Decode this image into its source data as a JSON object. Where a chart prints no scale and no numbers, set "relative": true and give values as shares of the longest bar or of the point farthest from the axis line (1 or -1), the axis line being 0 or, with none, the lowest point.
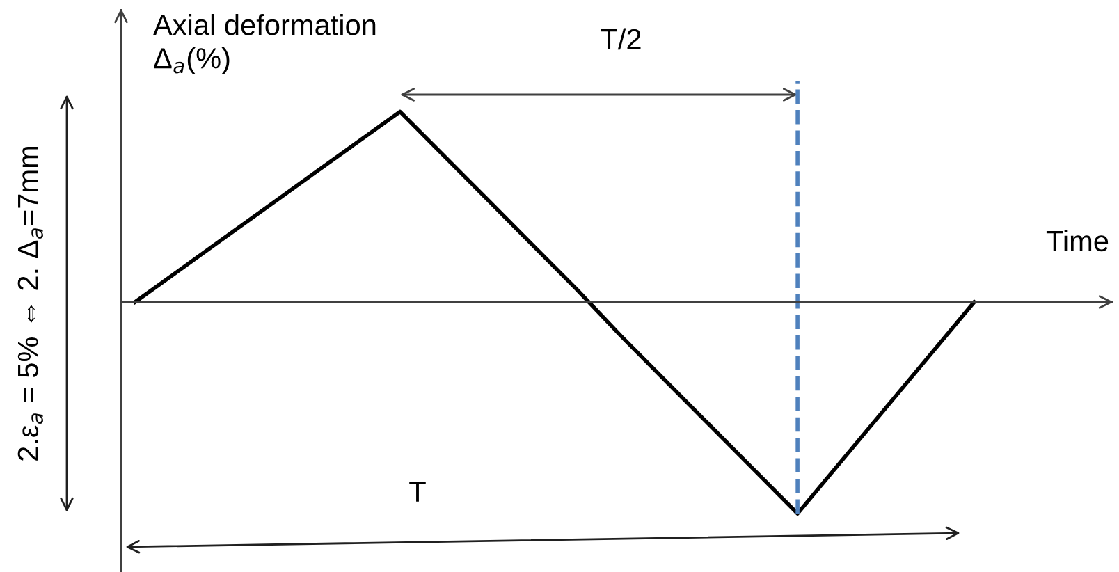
{
  "chart_data": {
    "type": "line",
    "relative": true,
    "ylabel": "Axial deformation\nΔ$_{a}$(%)",
    "xlabel": "Time",
    "categories": [
      null,
      null,
      null,
      null,
      null,
      null,
      null,
      null,
      null,
      null,
      null,
      null,
      null,
      null,
      null,
      null,
      null,
      null,
      null,
      null
    ],
    "series": [
      {
        "color": "#000000",
        "values": [
          0,
          0.15,
          0.3,
          0.45,
          0.6,
          0.75,
          0.9,
          0.69,
          0.48,
          0.27,
          0.06,
          -0.16,
          -0.37,
          -0.58,
          -0.79,
          -1,
          -0.75,
          -0.5,
          -0.25,
          0
        ]
      }
    ],
    "annotations": [
      "T/2",
      "T",
      "2.ε$_{a}$ = 5% ⇔ 2. Δ$_{a}$=7mm"
    ],
    "legend": false,
    "marker": "none",
    "line_style": "solid"
  }
}
